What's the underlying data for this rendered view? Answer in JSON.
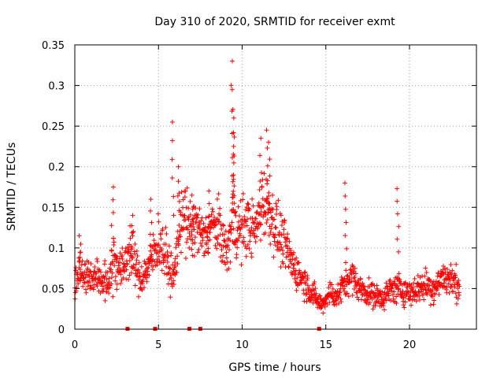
{
  "chart_data": {
    "type": "scatter",
    "title": "Day 310 of 2020, SRMTID for receiver exmt",
    "xlabel": "GPS time / hours",
    "ylabel": "SRMTID / TECUs",
    "xlim": [
      0,
      24
    ],
    "ylim": [
      0,
      0.35
    ],
    "grid": true,
    "marker": "+",
    "x_ticks": [
      0,
      5,
      10,
      15,
      20
    ],
    "x_tick_labels": [
      "0",
      "5",
      "10",
      "15",
      "20"
    ],
    "y_ticks": [
      0,
      0.05,
      0.1,
      0.15,
      0.2,
      0.25,
      0.3,
      0.35
    ],
    "y_tick_labels": [
      "0",
      "0.05",
      "0.1",
      "0.15",
      "0.2",
      "0.25",
      "0.3",
      "0.35"
    ],
    "baseline_marker_x": [
      3.15,
      4.8,
      6.85,
      7.5,
      14.6
    ],
    "series": [
      {
        "name": "SRMTID",
        "color": "#ff0000",
        "profile_x": [
          0,
          0.25,
          0.5,
          1,
          1.5,
          2,
          2.3,
          2.8,
          3.3,
          3.9,
          4.5,
          5,
          5.5,
          5.9,
          6.4,
          6.8,
          7.2,
          7.7,
          8.2,
          8.7,
          9.1,
          9.45,
          9.8,
          10.3,
          10.8,
          11.2,
          11.6,
          12.1,
          12.6,
          13,
          13.5,
          14,
          14.5,
          14.8,
          15.2,
          15.7,
          16.2,
          16.6,
          17,
          17.5,
          18,
          18.5,
          19,
          19.5,
          20,
          20.5,
          21,
          21.5,
          22,
          22.5,
          23
        ],
        "profile_y": [
          0.045,
          0.08,
          0.065,
          0.065,
          0.06,
          0.055,
          0.09,
          0.07,
          0.1,
          0.06,
          0.08,
          0.11,
          0.085,
          0.06,
          0.15,
          0.12,
          0.13,
          0.11,
          0.13,
          0.12,
          0.09,
          0.14,
          0.12,
          0.13,
          0.12,
          0.16,
          0.15,
          0.12,
          0.1,
          0.08,
          0.065,
          0.05,
          0.035,
          0.03,
          0.045,
          0.04,
          0.06,
          0.065,
          0.05,
          0.045,
          0.04,
          0.04,
          0.05,
          0.05,
          0.045,
          0.05,
          0.055,
          0.05,
          0.065,
          0.06,
          0.055
        ],
        "spread": [
          0.02,
          0.03,
          0.022,
          0.02,
          0.02,
          0.018,
          0.04,
          0.025,
          0.035,
          0.02,
          0.025,
          0.035,
          0.03,
          0.02,
          0.045,
          0.04,
          0.035,
          0.03,
          0.025,
          0.035,
          0.025,
          0.05,
          0.04,
          0.035,
          0.03,
          0.045,
          0.04,
          0.035,
          0.03,
          0.025,
          0.02,
          0.018,
          0.012,
          0.01,
          0.015,
          0.015,
          0.02,
          0.02,
          0.016,
          0.016,
          0.014,
          0.015,
          0.018,
          0.018,
          0.016,
          0.018,
          0.02,
          0.018,
          0.022,
          0.02,
          0.02
        ],
        "peaks_x": [
          0.3,
          2.25,
          3.4,
          4.55,
          5.85,
          6.2,
          7.05,
          8,
          9.4,
          9.45,
          9.5,
          9.52,
          11.1,
          11.5,
          11.6,
          16.2,
          19.3
        ],
        "peaks_y": [
          0.115,
          0.175,
          0.14,
          0.16,
          0.255,
          0.2,
          0.165,
          0.17,
          0.33,
          0.295,
          0.26,
          0.225,
          0.235,
          0.245,
          0.23,
          0.18,
          0.173
        ]
      }
    ]
  }
}
